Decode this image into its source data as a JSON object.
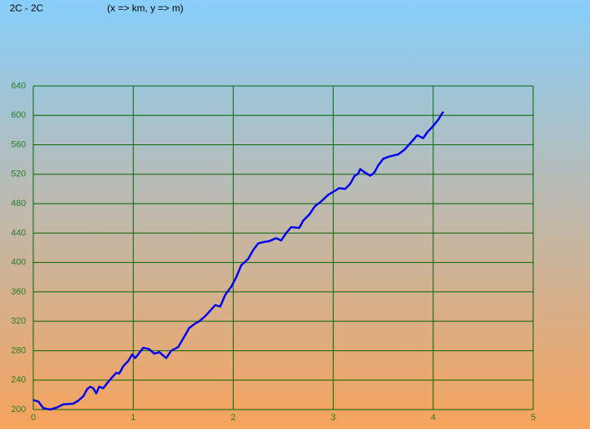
{
  "chart_data": {
    "type": "line",
    "title": "2C - 2C",
    "subtitle": "(x => km, y => m)",
    "x": [
      0,
      0.05,
      0.1,
      0.17,
      0.24,
      0.3,
      0.4,
      0.45,
      0.5,
      0.54,
      0.57,
      0.6,
      0.63,
      0.66,
      0.7,
      0.74,
      0.79,
      0.83,
      0.86,
      0.9,
      0.95,
      0.99,
      1.02,
      1.06,
      1.1,
      1.16,
      1.21,
      1.26,
      1.33,
      1.38,
      1.45,
      1.51,
      1.56,
      1.62,
      1.66,
      1.72,
      1.78,
      1.82,
      1.87,
      1.92,
      1.98,
      2.03,
      2.08,
      2.15,
      2.2,
      2.25,
      2.31,
      2.36,
      2.43,
      2.48,
      2.53,
      2.58,
      2.66,
      2.7,
      2.76,
      2.82,
      2.88,
      2.95,
      3.0,
      3.06,
      3.12,
      3.17,
      3.21,
      3.25,
      3.27,
      3.32,
      3.37,
      3.41,
      3.45,
      3.5,
      3.56,
      3.65,
      3.71,
      3.77,
      3.84,
      3.9,
      3.94,
      3.99,
      4.05,
      4.1
    ],
    "values": [
      213,
      211,
      202,
      200,
      203,
      207,
      208,
      212,
      218,
      228,
      231,
      229,
      222,
      231,
      229,
      236,
      244,
      250,
      249,
      259,
      266,
      275,
      270,
      277,
      284,
      282,
      276,
      278,
      270,
      280,
      285,
      299,
      311,
      317,
      320,
      327,
      336,
      342,
      340,
      356,
      367,
      380,
      396,
      405,
      417,
      426,
      428,
      429,
      433,
      430,
      440,
      448,
      447,
      457,
      465,
      477,
      483,
      492,
      496,
      501,
      500,
      507,
      517,
      521,
      527,
      522,
      518,
      522,
      532,
      541,
      544,
      547,
      553,
      562,
      573,
      569,
      577,
      584,
      594,
      605
    ],
    "color": "#0000ee",
    "xlim": [
      0,
      5
    ],
    "xticks": [
      0,
      1,
      2,
      3,
      4,
      5
    ],
    "ylim": [
      200,
      640
    ],
    "yticks": [
      200,
      240,
      280,
      320,
      360,
      400,
      440,
      480,
      520,
      560,
      600,
      640
    ],
    "grid": true,
    "grid_color": "#006400"
  }
}
